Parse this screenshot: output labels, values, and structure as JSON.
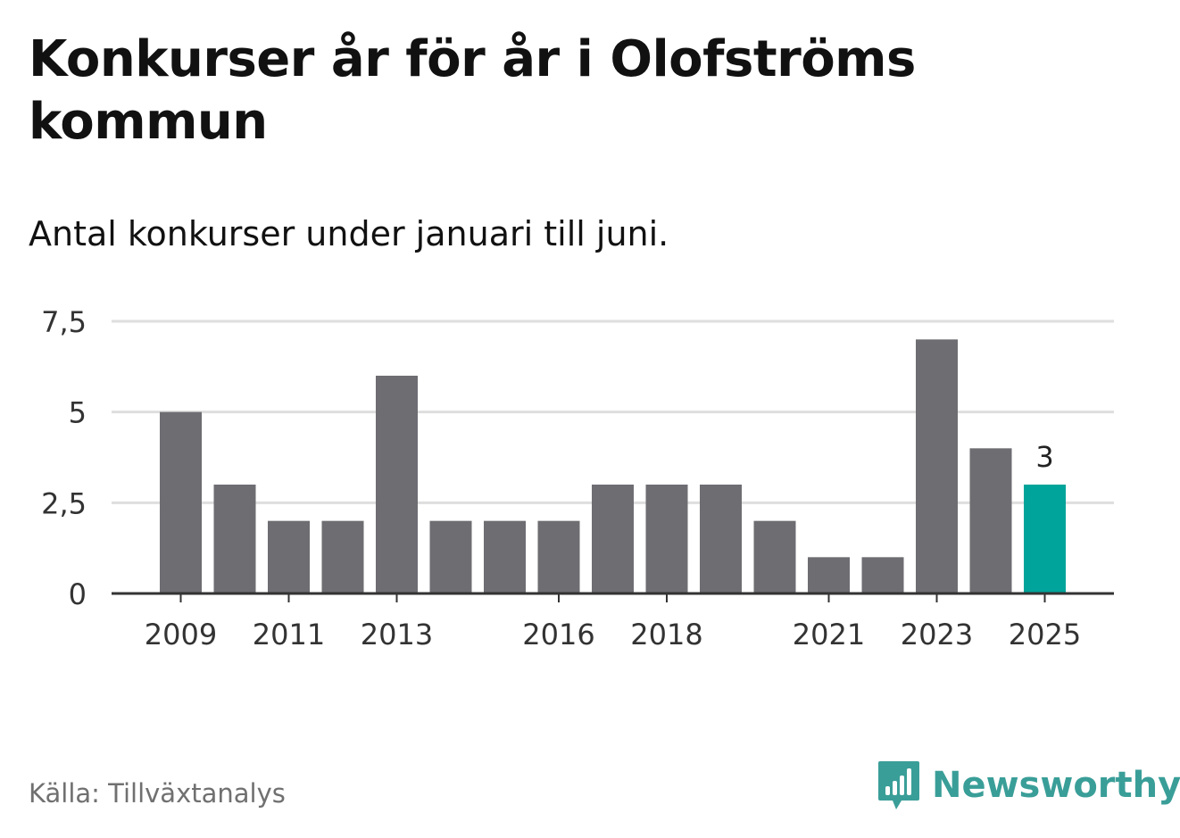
{
  "title": "Konkurser år för år i Olofströms kommun",
  "subtitle": "Antal konkurser under januari till juni.",
  "source": "Källa: Tillväxtanalys",
  "brand": {
    "name": "Newsworthy",
    "color": "#3a9e98",
    "icon": "newsworthy-logo-icon"
  },
  "colors": {
    "bar": "#6e6d72",
    "highlight": "#00a49a",
    "grid": "#dedede",
    "axis": "#333333",
    "tick_text": "#333333"
  },
  "chart_data": {
    "type": "bar",
    "title": "Konkurser år för år i Olofströms kommun",
    "subtitle": "Antal konkurser under januari till juni.",
    "categories": [
      "2009",
      "2010",
      "2011",
      "2012",
      "2013",
      "2014",
      "2015",
      "2016",
      "2017",
      "2018",
      "2019",
      "2020",
      "2021",
      "2022",
      "2023",
      "2024",
      "2025"
    ],
    "values": [
      5,
      3,
      2,
      2,
      6,
      2,
      2,
      2,
      3,
      3,
      3,
      2,
      1,
      1,
      7,
      4,
      3
    ],
    "highlight_index": 16,
    "data_labels": [
      {
        "index": 16,
        "text": "3"
      }
    ],
    "x_tick_labels": [
      "2009",
      "2011",
      "2013",
      "2016",
      "2018",
      "2021",
      "2023",
      "2025"
    ],
    "y_ticks": [
      0,
      2.5,
      5,
      7.5
    ],
    "y_tick_labels": [
      "0",
      "2,5",
      "5",
      "7,5"
    ],
    "ylim": [
      0,
      7.5
    ],
    "xlabel": "",
    "ylabel": "",
    "grid": true,
    "legend": "none"
  }
}
